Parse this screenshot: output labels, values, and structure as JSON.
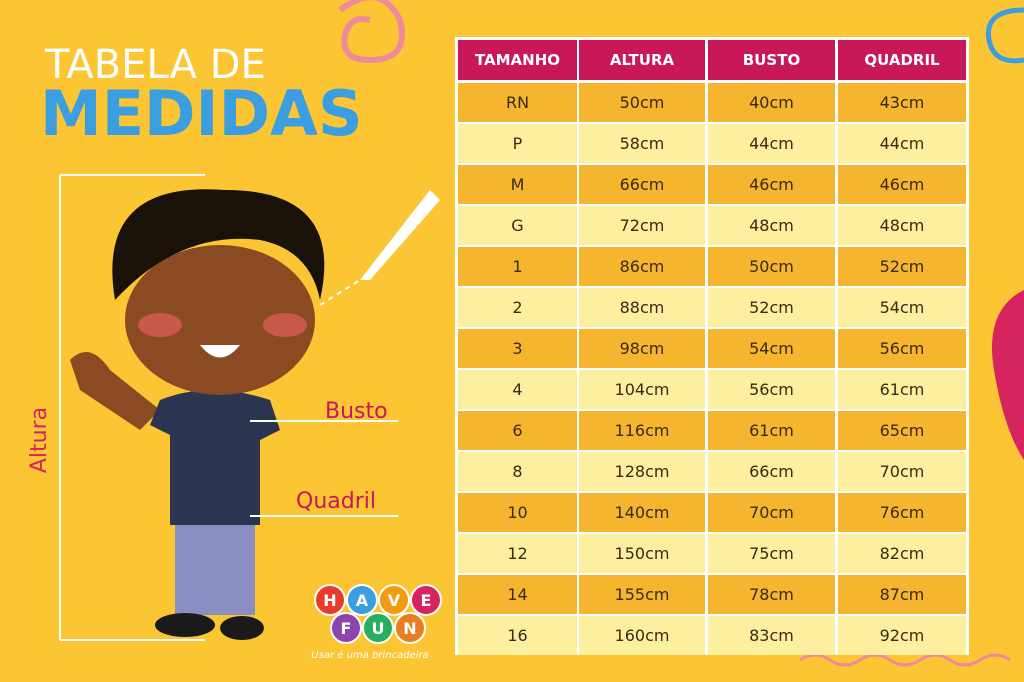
{
  "header": {
    "title_line1": "TABELA DE",
    "title_line2": "MEDIDAS"
  },
  "labels": {
    "busto": "Busto",
    "quadril": "Quadril",
    "altura": "Altura"
  },
  "logo": {
    "row1": [
      "H",
      "A",
      "V",
      "E"
    ],
    "row2": [
      "F",
      "U",
      "N"
    ],
    "tagline": "Usar é uma brincadeira"
  },
  "table": {
    "columns": [
      "TAMANHO",
      "ALTURA",
      "BUSTO",
      "QUADRIL"
    ],
    "rows": [
      [
        "RN",
        "50cm",
        "40cm",
        "43cm"
      ],
      [
        "P",
        "58cm",
        "44cm",
        "44cm"
      ],
      [
        "M",
        "66cm",
        "46cm",
        "46cm"
      ],
      [
        "G",
        "72cm",
        "48cm",
        "48cm"
      ],
      [
        "1",
        "86cm",
        "50cm",
        "52cm"
      ],
      [
        "2",
        "88cm",
        "52cm",
        "54cm"
      ],
      [
        "3",
        "98cm",
        "54cm",
        "56cm"
      ],
      [
        "4",
        "104cm",
        "56cm",
        "61cm"
      ],
      [
        "6",
        "116cm",
        "61cm",
        "65cm"
      ],
      [
        "8",
        "128cm",
        "66cm",
        "70cm"
      ],
      [
        "10",
        "140cm",
        "70cm",
        "76cm"
      ],
      [
        "12",
        "150cm",
        "75cm",
        "82cm"
      ],
      [
        "14",
        "155cm",
        "78cm",
        "87cm"
      ],
      [
        "16",
        "160cm",
        "83cm",
        "92cm"
      ]
    ]
  }
}
